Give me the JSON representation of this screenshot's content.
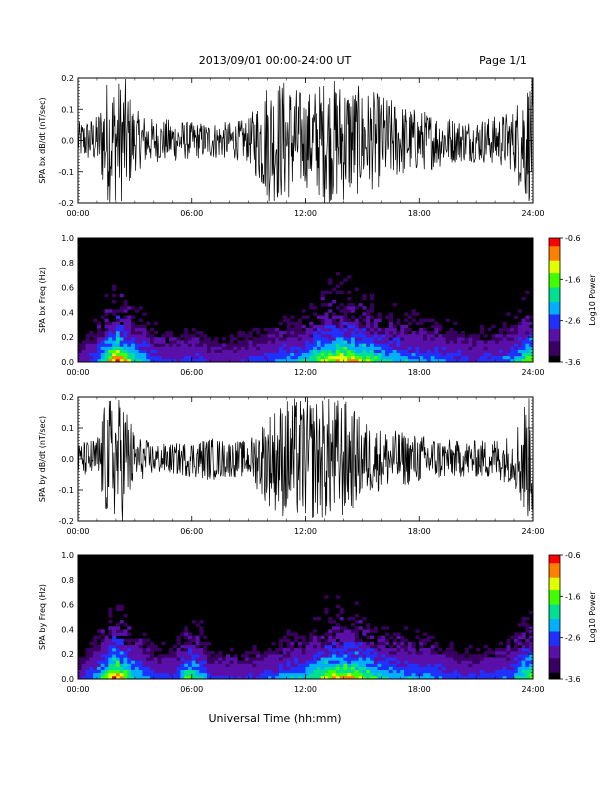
{
  "header": {
    "title": "2013/09/01  00:00-24:00 UT",
    "page": "Page 1/1"
  },
  "colors": {
    "background": "#ffffff",
    "trace": "#000000",
    "colormap": [
      "#000000",
      "#3a0060",
      "#5a10a8",
      "#2030ff",
      "#00b0ff",
      "#00e090",
      "#40ff00",
      "#e0ff00",
      "#ff8000",
      "#ff0000"
    ]
  },
  "chart_data": [
    {
      "type": "line",
      "ylabel": "SPA bx dB/dt (nT/sec)",
      "xlim": [
        "00:00",
        "24:00"
      ],
      "ylim": [
        -0.2,
        0.2
      ],
      "x_ticks": [
        "00:00",
        "06:00",
        "12:00",
        "18:00",
        "24:00"
      ],
      "y_ticks": [
        "-0.2",
        "-0.1",
        "0.0",
        "0.1",
        "0.2"
      ],
      "series": [
        {
          "x_hours": [
            0,
            1,
            1.5,
            2,
            2.5,
            3,
            4,
            5,
            6,
            7,
            8,
            9,
            10,
            11,
            12,
            13,
            14,
            15,
            16,
            17,
            18,
            19,
            20,
            21,
            22,
            23,
            23.5,
            24
          ],
          "amplitude": [
            0.06,
            0.08,
            0.2,
            0.2,
            0.2,
            0.1,
            0.07,
            0.07,
            0.06,
            0.06,
            0.06,
            0.07,
            0.2,
            0.2,
            0.15,
            0.2,
            0.2,
            0.17,
            0.15,
            0.12,
            0.1,
            0.09,
            0.07,
            0.07,
            0.08,
            0.1,
            0.2,
            0.2
          ]
        }
      ]
    },
    {
      "type": "heatmap",
      "ylabel": "SPA bx Freq (Hz)",
      "xlim": [
        "00:00",
        "24:00"
      ],
      "ylim": [
        0.0,
        1.0
      ],
      "x_ticks": [
        "00:00",
        "06:00",
        "12:00",
        "18:00",
        "24:00"
      ],
      "y_ticks": [
        "0.0",
        "0.2",
        "0.4",
        "0.6",
        "0.8",
        "1.0"
      ],
      "colorbar": {
        "label": "Log10 Power",
        "range": [
          -3.6,
          -0.6
        ],
        "ticks": [
          "-0.6",
          "-1.6",
          "-2.6",
          "-3.6"
        ]
      },
      "activity_hours": [
        0,
        1,
        2,
        3,
        4,
        5,
        6,
        7,
        8,
        9,
        10,
        11,
        12,
        13,
        14,
        15,
        16,
        17,
        18,
        19,
        20,
        21,
        22,
        23,
        24
      ],
      "activity_level": [
        0.2,
        0.4,
        0.95,
        0.6,
        0.35,
        0.3,
        0.35,
        0.25,
        0.25,
        0.3,
        0.35,
        0.45,
        0.5,
        0.8,
        0.85,
        0.8,
        0.55,
        0.5,
        0.45,
        0.4,
        0.35,
        0.3,
        0.35,
        0.45,
        0.8
      ]
    },
    {
      "type": "line",
      "ylabel": "SPA by dB/dt (nT/sec)",
      "xlim": [
        "00:00",
        "24:00"
      ],
      "ylim": [
        -0.2,
        0.2
      ],
      "x_ticks": [
        "00:00",
        "06:00",
        "12:00",
        "18:00",
        "24:00"
      ],
      "y_ticks": [
        "-0.2",
        "-0.1",
        "0.0",
        "0.1",
        "0.2"
      ],
      "series": [
        {
          "x_hours": [
            0,
            1,
            1.5,
            2,
            2.5,
            3,
            4,
            5,
            6,
            7,
            8,
            9,
            10,
            11,
            12,
            13,
            14,
            15,
            16,
            17,
            18,
            19,
            20,
            21,
            22,
            23,
            23.5,
            24
          ],
          "amplitude": [
            0.05,
            0.07,
            0.2,
            0.2,
            0.2,
            0.08,
            0.05,
            0.05,
            0.06,
            0.07,
            0.06,
            0.06,
            0.15,
            0.2,
            0.2,
            0.2,
            0.2,
            0.13,
            0.1,
            0.09,
            0.08,
            0.07,
            0.06,
            0.06,
            0.07,
            0.08,
            0.2,
            0.2
          ]
        }
      ]
    },
    {
      "type": "heatmap",
      "ylabel": "SPA by Freq (Hz)",
      "xlim": [
        "00:00",
        "24:00"
      ],
      "ylim": [
        0.0,
        1.0
      ],
      "x_ticks": [
        "00:00",
        "06:00",
        "12:00",
        "18:00",
        "24:00"
      ],
      "y_ticks": [
        "0.0",
        "0.2",
        "0.4",
        "0.6",
        "0.8",
        "1.0"
      ],
      "colorbar": {
        "label": "Log10 Power",
        "range": [
          -3.6,
          -0.6
        ],
        "ticks": [
          "-0.6",
          "-1.6",
          "-2.6",
          "-3.6"
        ]
      },
      "activity_hours": [
        0,
        1,
        2,
        3,
        4,
        5,
        6,
        7,
        8,
        9,
        10,
        11,
        12,
        13,
        14,
        15,
        16,
        17,
        18,
        19,
        20,
        21,
        22,
        23,
        24
      ],
      "activity_level": [
        0.2,
        0.45,
        0.95,
        0.55,
        0.35,
        0.3,
        0.7,
        0.3,
        0.3,
        0.3,
        0.35,
        0.45,
        0.5,
        0.75,
        0.85,
        0.75,
        0.55,
        0.5,
        0.45,
        0.4,
        0.35,
        0.3,
        0.35,
        0.45,
        0.8
      ]
    }
  ],
  "xaxis_label": "Universal Time (hh:mm)"
}
